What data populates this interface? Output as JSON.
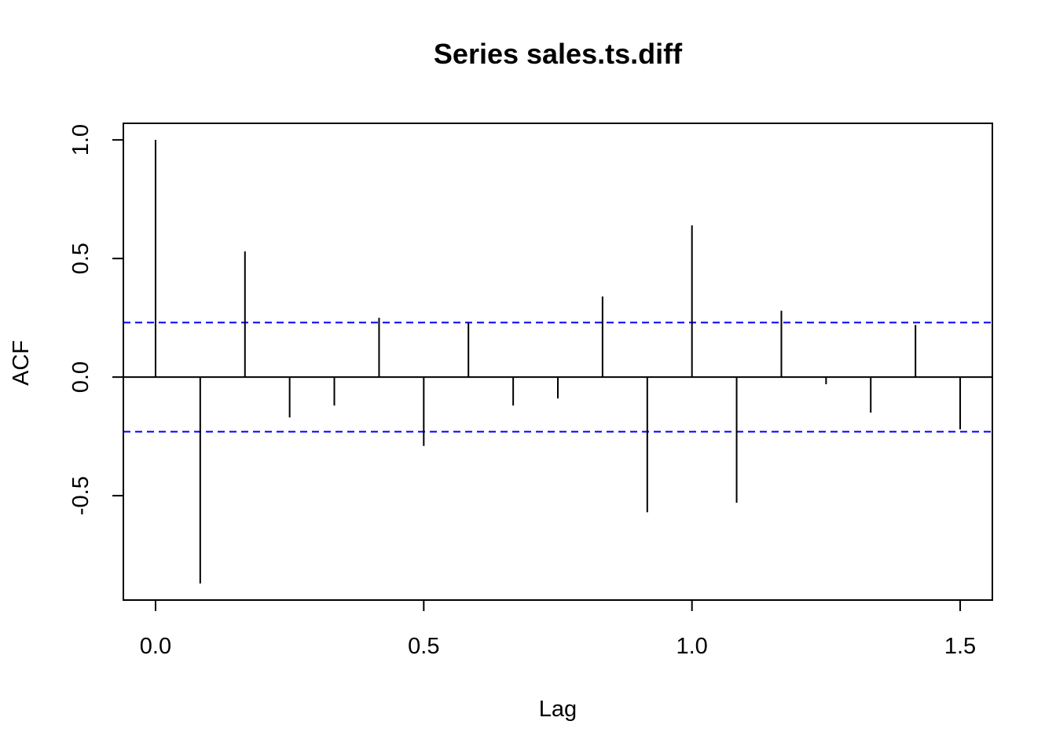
{
  "chart_data": {
    "type": "bar",
    "title": "Series  sales.ts.diff",
    "xlabel": "Lag",
    "ylabel": "ACF",
    "xlim": [
      -0.06,
      1.56
    ],
    "ylim": [
      -0.94,
      1.07
    ],
    "x_ticks": [
      0.0,
      0.5,
      1.0,
      1.5
    ],
    "x_tick_labels": [
      "0.0",
      "0.5",
      "1.0",
      "1.5"
    ],
    "y_ticks": [
      -0.5,
      0.0,
      0.5,
      1.0
    ],
    "y_tick_labels": [
      "-0.5",
      "0.0",
      "0.5",
      "1.0"
    ],
    "lags": [
      0.0,
      0.0833,
      0.1667,
      0.25,
      0.3333,
      0.4167,
      0.5,
      0.5833,
      0.6667,
      0.75,
      0.8333,
      0.9167,
      1.0,
      1.0833,
      1.1667,
      1.25,
      1.3333,
      1.4167,
      1.5
    ],
    "acf": [
      1.0,
      -0.87,
      0.53,
      -0.17,
      -0.12,
      0.25,
      -0.29,
      0.23,
      -0.12,
      -0.09,
      0.34,
      -0.57,
      0.64,
      -0.53,
      0.28,
      -0.03,
      -0.15,
      0.22,
      -0.22
    ],
    "confidence_bound": 0.23,
    "confidence_color": "#0000ff",
    "bar_color": "#000000",
    "grid": false
  }
}
